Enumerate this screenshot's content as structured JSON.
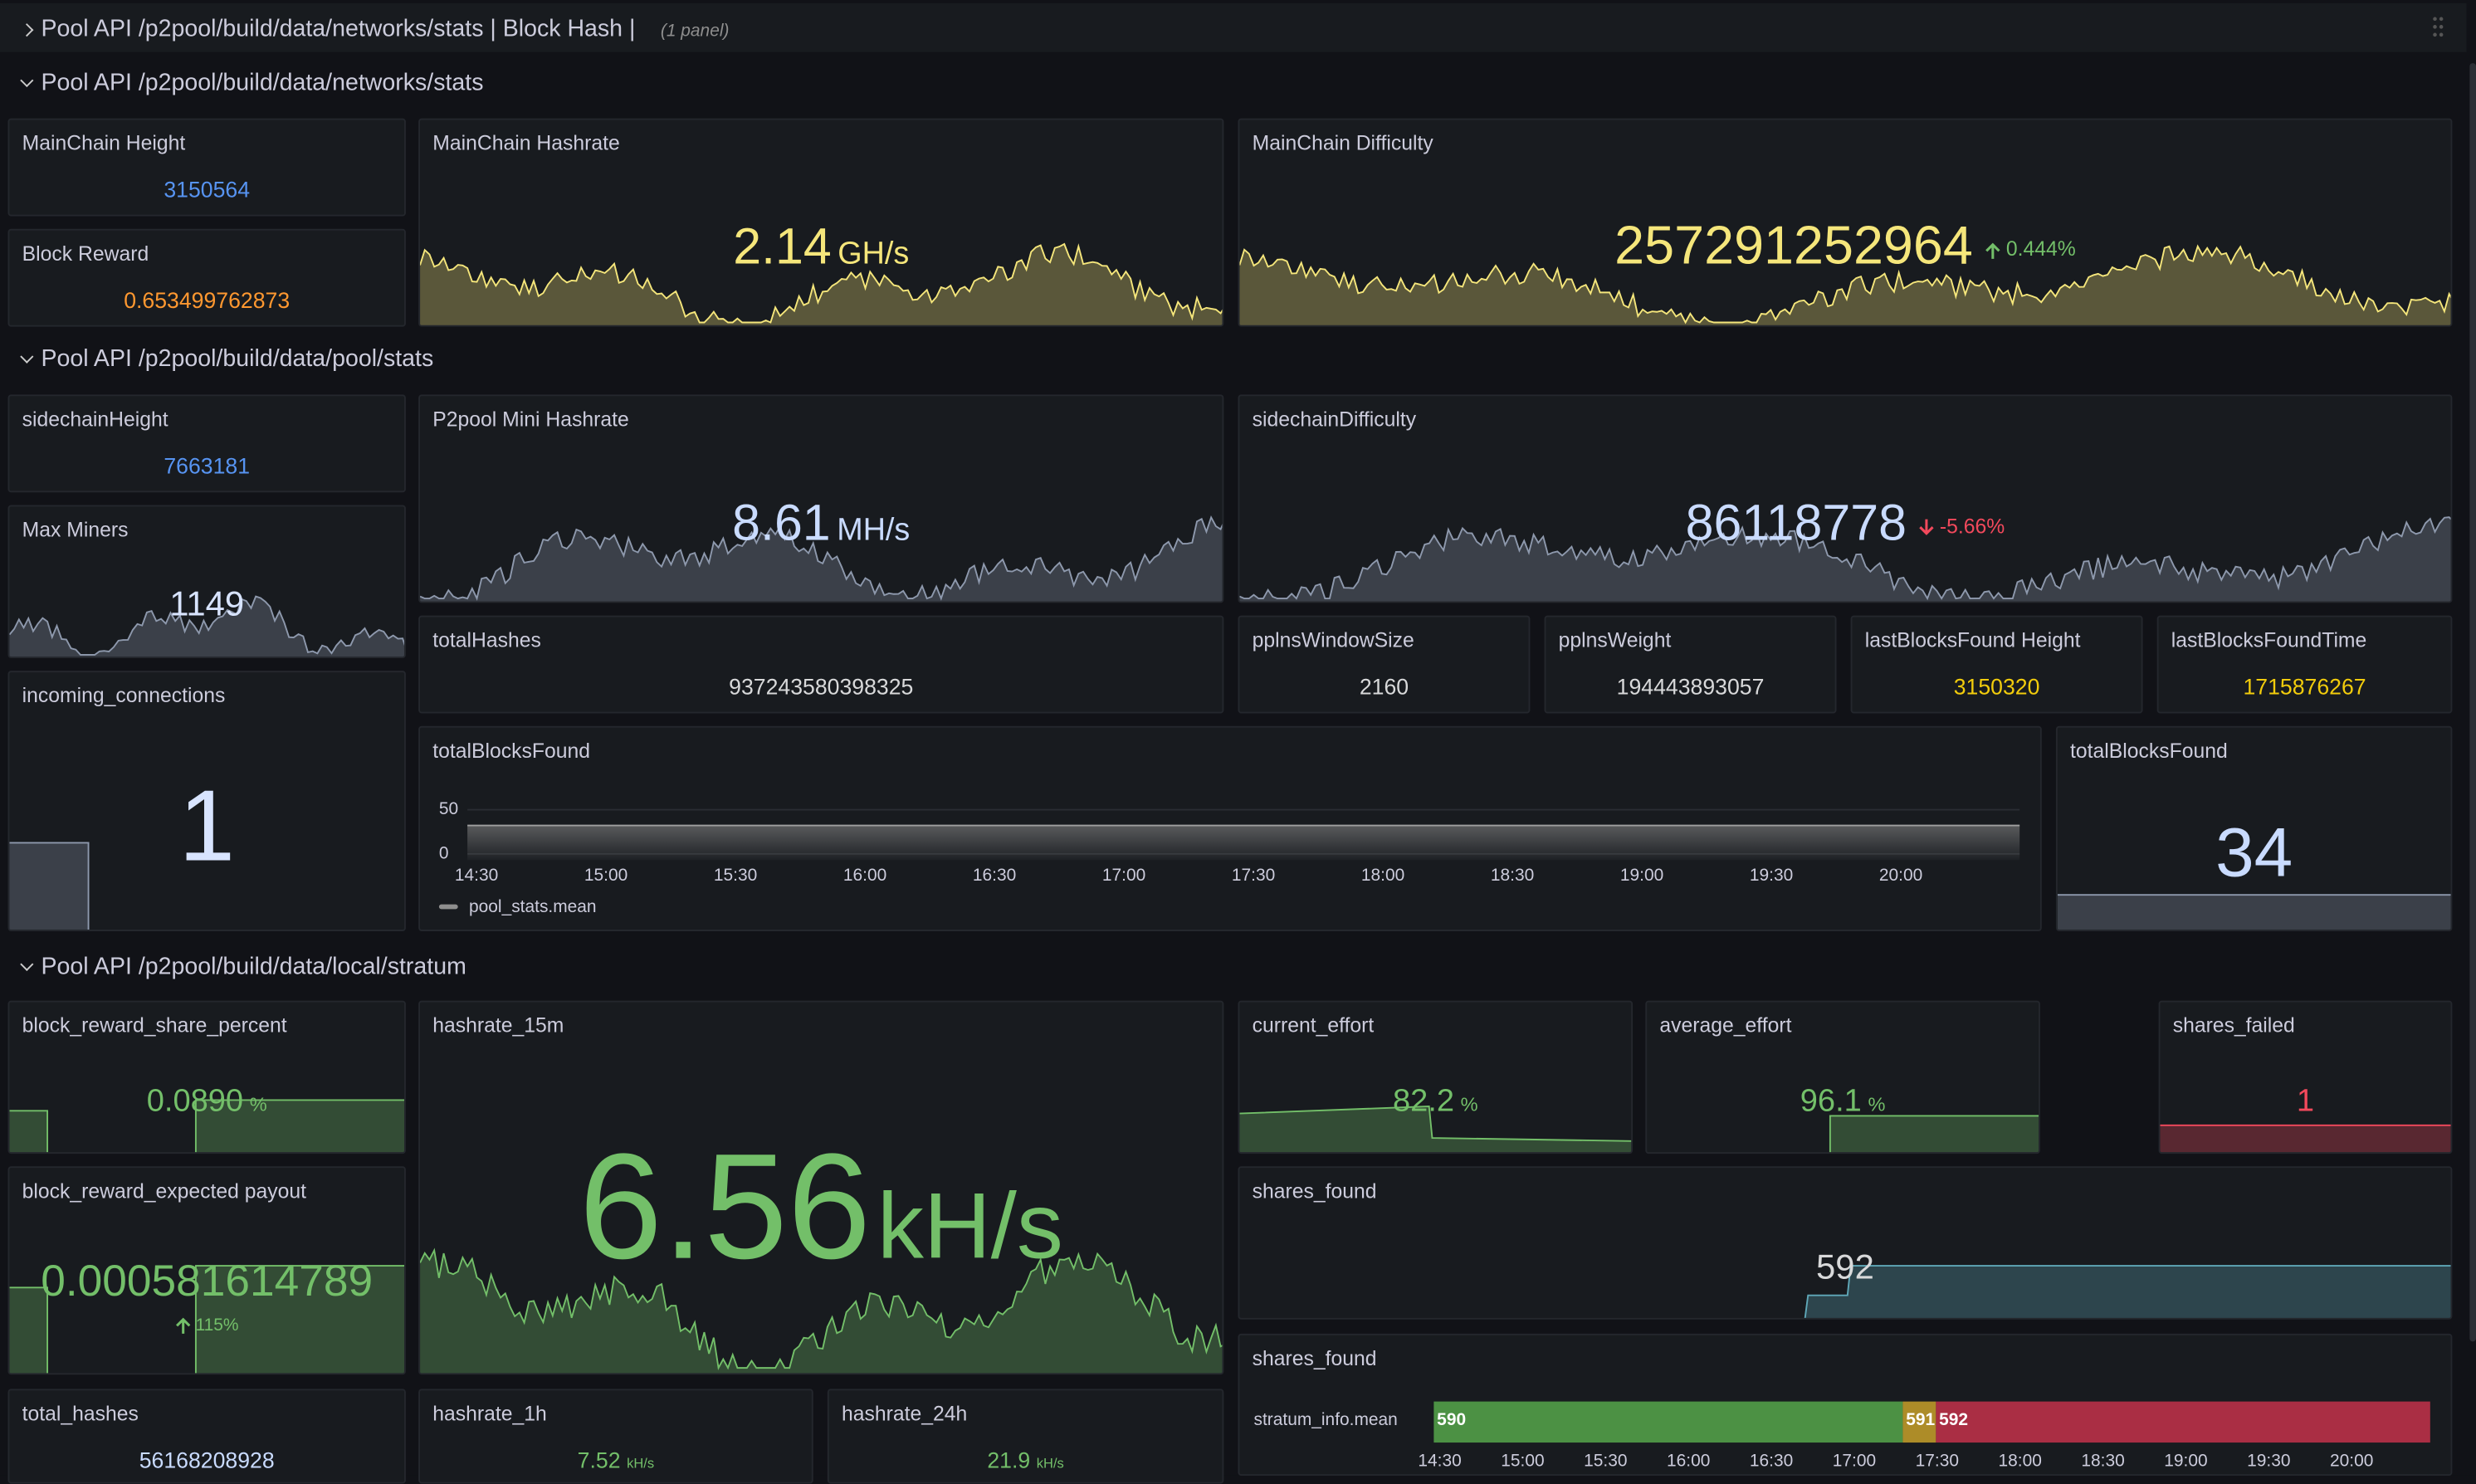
{
  "header": {
    "title": "Pool API /p2pool/build/data/networks/stats | Block Hash |",
    "note": "(1 panel)"
  },
  "rows": [
    {
      "title": "Pool API /p2pool/build/data/networks/stats"
    },
    {
      "title": "Pool API /p2pool/build/data/pool/stats"
    },
    {
      "title": "Pool API /p2pool/build/data/local/stratum"
    }
  ],
  "panels": [
    {
      "title": "MainChain Height",
      "value": "3150564"
    },
    {
      "title": "Block Reward",
      "value": "0.653499762873"
    },
    {
      "title": "MainChain Hashrate",
      "value": "2.14",
      "unit": "GH/s"
    },
    {
      "title": "MainChain Difficulty",
      "value": "257291252964",
      "delta": "0.444%"
    },
    {
      "title": "sidechainHeight",
      "value": "7663181"
    },
    {
      "title": "Max Miners",
      "value": "1149"
    },
    {
      "title": "incoming_connections",
      "value": "1"
    },
    {
      "title": "P2pool Mini Hashrate",
      "value": "8.61",
      "unit": "MH/s"
    },
    {
      "title": "sidechainDifficulty",
      "value": "86118778",
      "delta": "-5.66%"
    },
    {
      "title": "totalHashes",
      "value": "937243580398325"
    },
    {
      "title": "pplnsWindowSize",
      "value": "2160"
    },
    {
      "title": "pplnsWeight",
      "value": "194443893057"
    },
    {
      "title": "lastBlocksFound Height",
      "value": "3150320"
    },
    {
      "title": "lastBlocksFoundTime",
      "value": "1715876267"
    },
    {
      "title": "totalBlocksFound",
      "yticks": [
        50,
        0
      ],
      "xticks": [
        "14:30",
        "15:00",
        "15:30",
        "16:00",
        "16:30",
        "17:00",
        "17:30",
        "18:00",
        "18:30",
        "19:00",
        "19:30",
        "20:00"
      ],
      "legend": "pool_stats.mean"
    },
    {
      "title": "totalBlocksFound",
      "value": "34"
    },
    {
      "title": "block_reward_share_percent",
      "value": "0.0890",
      "unit": "%"
    },
    {
      "title": "block_reward_expected payout",
      "value": "0.000581614789",
      "delta": "115%"
    },
    {
      "title": "hashrate_15m",
      "value": "6.56",
      "unit": "kH/s"
    },
    {
      "title": "current_effort",
      "value": "82.2",
      "unit": "%"
    },
    {
      "title": "average_effort",
      "value": "96.1",
      "unit": "%"
    },
    {
      "title": "shares_failed",
      "value": "1"
    },
    {
      "title": "shares_found",
      "value": "592"
    },
    {
      "title": "shares_found",
      "series": "stratum_info.mean",
      "segments": [
        590,
        591,
        592
      ],
      "xticks": [
        "14:30",
        "15:00",
        "15:30",
        "16:00",
        "16:30",
        "17:00",
        "17:30",
        "18:00",
        "18:30",
        "19:00",
        "19:30",
        "20:00"
      ]
    },
    {
      "title": "total_hashes",
      "value": "56168208928"
    },
    {
      "title": "hashrate_1h",
      "value": "7.52",
      "unit": "kH/s"
    },
    {
      "title": "hashrate_24h",
      "value": "21.9",
      "unit": "kH/s"
    }
  ]
}
